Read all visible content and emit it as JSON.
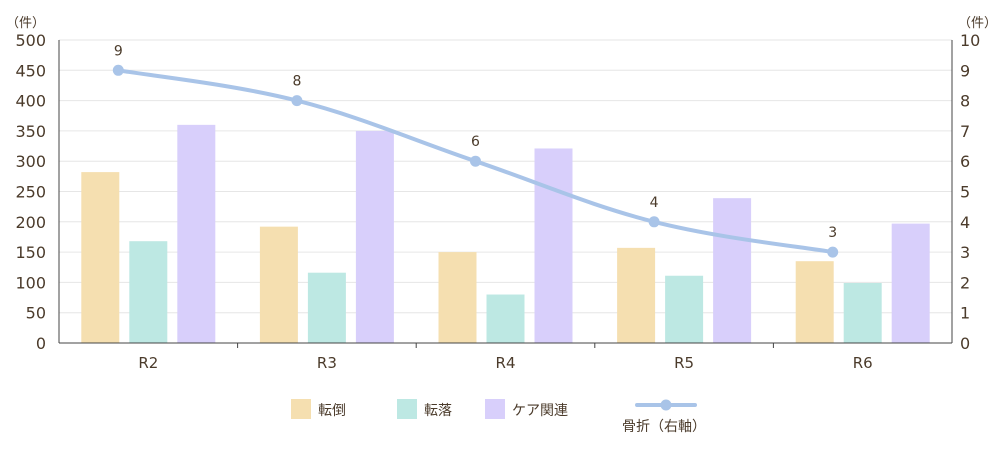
{
  "chart_data": {
    "type": "bar",
    "categories": [
      "R2",
      "R3",
      "R4",
      "R5",
      "R6"
    ],
    "series": [
      {
        "name": "転倒",
        "values": [
          282,
          192,
          150,
          157,
          135
        ],
        "color": "#f5dfb0",
        "axis": "left"
      },
      {
        "name": "転落",
        "values": [
          168,
          116,
          80,
          111,
          99
        ],
        "color": "#bde8e3",
        "axis": "left"
      },
      {
        "name": "ケア関連",
        "values": [
          360,
          350,
          321,
          239,
          197
        ],
        "color": "#d8cffb",
        "axis": "left"
      }
    ],
    "line_series": {
      "name": "骨折（右軸）",
      "values": [
        9,
        8,
        6,
        4,
        3
      ],
      "color": "#a9c4e8",
      "data_labels": [
        "9",
        "8",
        "6",
        "4",
        "3"
      ]
    },
    "y_left": {
      "unit": "（件）",
      "ylim": [
        0,
        500
      ],
      "ticks": [
        "0",
        "50",
        "100",
        "150",
        "200",
        "250",
        "300",
        "350",
        "400",
        "450",
        "500"
      ]
    },
    "y_right": {
      "unit": "（件）",
      "ylim": [
        0,
        10
      ],
      "ticks": [
        "0",
        "1",
        "2",
        "3",
        "4",
        "5",
        "6",
        "7",
        "8",
        "9",
        "10"
      ]
    },
    "grid": true,
    "legend": "bottom"
  }
}
